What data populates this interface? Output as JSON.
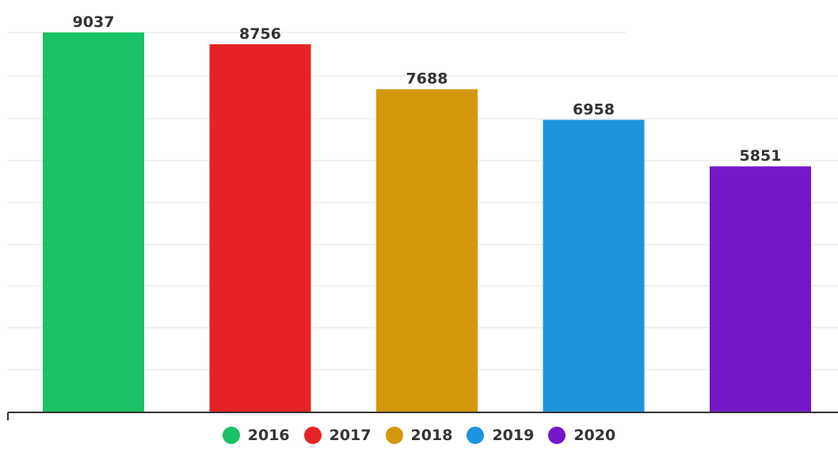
{
  "chart_data": {
    "type": "bar",
    "title": "",
    "xlabel": "",
    "ylabel": "",
    "categories": [
      "2016",
      "2017",
      "2018",
      "2019",
      "2020"
    ],
    "values": [
      9037,
      8756,
      7688,
      6958,
      5851
    ],
    "colors": [
      "#19c264",
      "#e52326",
      "#d3970a",
      "#1d94de",
      "#7318c8"
    ],
    "ylim": [
      0,
      10000
    ],
    "grid": true,
    "data_labels": true,
    "legend": {
      "placement": "bottom",
      "entries": [
        "2016",
        "2017",
        "2018",
        "2019",
        "2020"
      ]
    }
  }
}
